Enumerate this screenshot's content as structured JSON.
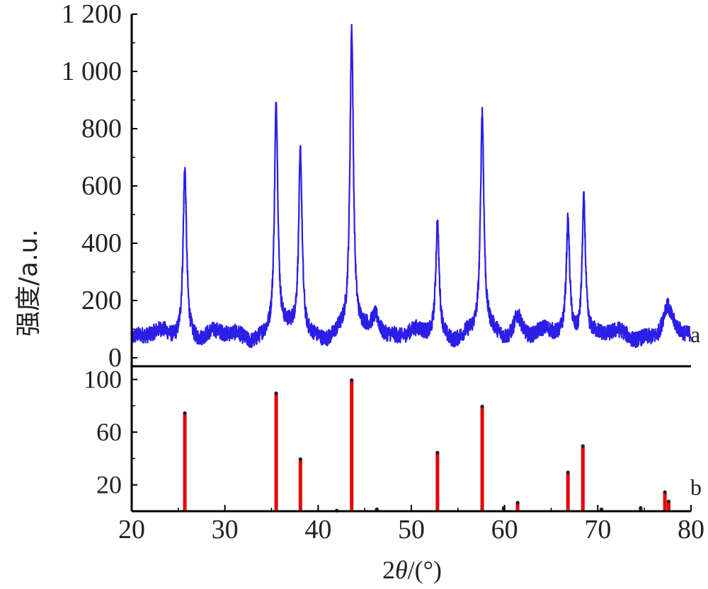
{
  "chart_data": [
    {
      "type": "line",
      "panel": "a",
      "panel_label": "a",
      "xlabel_prefix": "2",
      "xlabel_theta": "θ",
      "xlabel_suffix": "/(°)",
      "ylabel": "强度/a.u.",
      "xlim": [
        20,
        80
      ],
      "ylim": [
        0,
        1200
      ],
      "x_ticks": [
        "20",
        "30",
        "40",
        "50",
        "60",
        "70",
        "80"
      ],
      "y_ticks": [
        "0",
        "200",
        "400",
        "600",
        "800",
        "1 000",
        "1 200"
      ],
      "y_tick_values": [
        0,
        200,
        400,
        600,
        800,
        1000,
        1200
      ],
      "color": "#2b1ee6",
      "baseline": 75,
      "peaks": [
        {
          "x": 25.7,
          "y": 670
        },
        {
          "x": 35.5,
          "y": 890
        },
        {
          "x": 38.1,
          "y": 720
        },
        {
          "x": 43.6,
          "y": 1140
        },
        {
          "x": 46.2,
          "y": 160
        },
        {
          "x": 52.8,
          "y": 470
        },
        {
          "x": 57.6,
          "y": 850
        },
        {
          "x": 61.4,
          "y": 150
        },
        {
          "x": 66.8,
          "y": 470
        },
        {
          "x": 68.5,
          "y": 570
        },
        {
          "x": 77.4,
          "y": 170
        }
      ]
    },
    {
      "type": "bar",
      "panel": "b",
      "panel_label": "b",
      "xlim": [
        20,
        80
      ],
      "ylim": [
        0,
        110
      ],
      "y_ticks": [
        "20",
        "60",
        "100"
      ],
      "y_tick_values": [
        20,
        60,
        100
      ],
      "color": "#e60000",
      "x": [
        25.7,
        35.5,
        38.1,
        42.0,
        43.6,
        46.3,
        52.8,
        57.6,
        59.9,
        61.4,
        66.8,
        68.4,
        70.4,
        74.6,
        77.2,
        77.6
      ],
      "values": [
        75,
        90,
        40,
        1,
        100,
        2,
        45,
        80,
        3,
        7,
        30,
        50,
        2,
        3,
        15,
        8
      ]
    }
  ]
}
